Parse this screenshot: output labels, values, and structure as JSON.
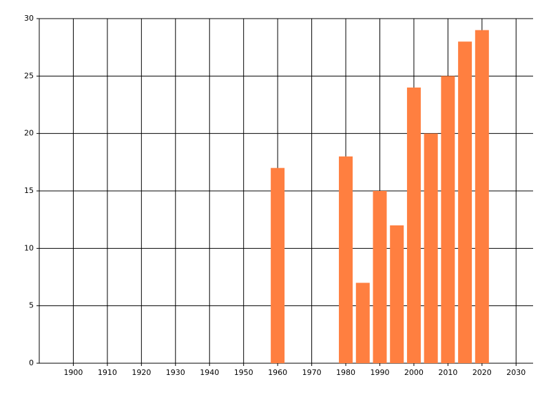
{
  "chart_data": {
    "type": "bar",
    "x": [
      1960,
      1980,
      1985,
      1990,
      1995,
      2000,
      2005,
      2010,
      2015,
      2020
    ],
    "values": [
      17,
      18,
      7,
      15,
      12,
      24,
      20,
      25,
      28,
      29
    ],
    "color": "#ff7f40",
    "xlim": [
      1890,
      2035
    ],
    "xticks": [
      1900,
      1910,
      1920,
      1930,
      1940,
      1950,
      1960,
      1970,
      1980,
      1990,
      2000,
      2010,
      2020,
      2030
    ],
    "ylim": [
      0,
      30
    ],
    "yticks": [
      0,
      5,
      10,
      15,
      20,
      25,
      30
    ],
    "grid": true
  }
}
